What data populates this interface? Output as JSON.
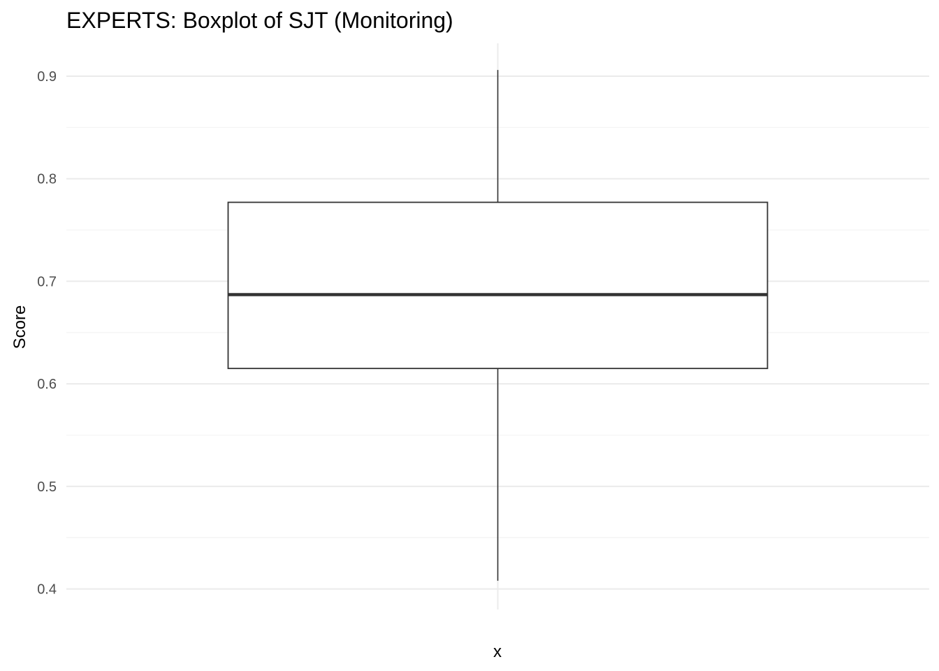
{
  "chart_data": {
    "type": "boxplot",
    "title": "EXPERTS: Boxplot of SJT (Monitoring)",
    "xlabel": "x",
    "ylabel": "Score",
    "ylim": [
      0.38,
      0.932
    ],
    "yticks": [
      0.4,
      0.5,
      0.6,
      0.7,
      0.8,
      0.9
    ],
    "ytick_labels": [
      "0.4",
      "0.5",
      "0.6",
      "0.7",
      "0.8",
      "0.9"
    ],
    "grid": true,
    "legend": "none",
    "series": [
      {
        "whisker_low": 0.408,
        "q1": 0.615,
        "median": 0.687,
        "q3": 0.777,
        "whisker_high": 0.906
      }
    ],
    "colors": {
      "box_stroke": "#333333",
      "box_fill": "#ffffff",
      "median": "#333333",
      "whisker": "#333333",
      "grid_major": "#ebebeb",
      "grid_minor": "#f3f3f3",
      "tick_text": "#4d4d4d"
    }
  }
}
